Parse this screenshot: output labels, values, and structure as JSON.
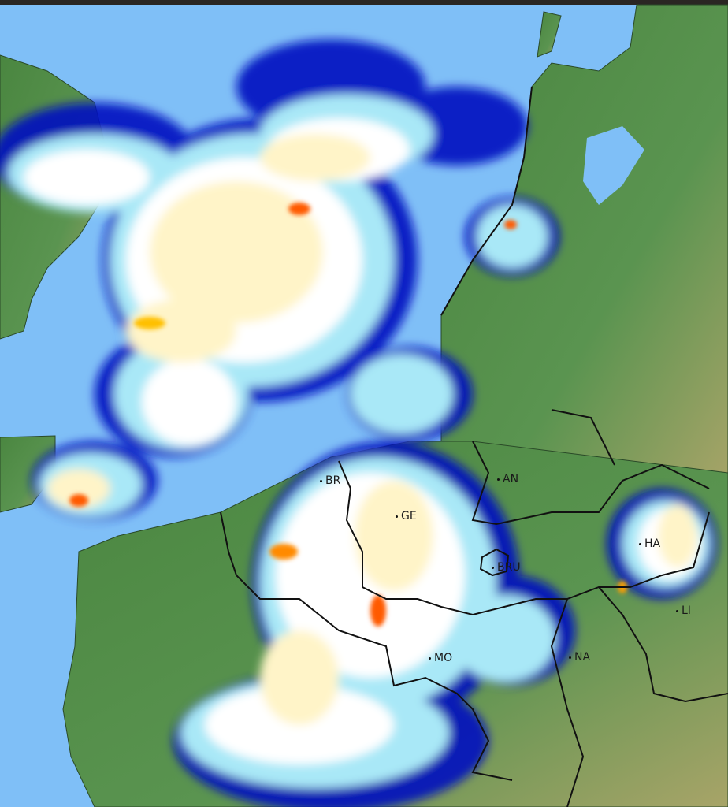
{
  "colors": {
    "sea": "#7fbff7",
    "land_low": "#4f8a45",
    "land_high": "#9fa86a",
    "radar_light": "#a9e8f7",
    "radar_blue": "#1a5de8",
    "radar_dark": "#0010c0",
    "radar_white": "#ffffff",
    "radar_yellow": "#fff4c8",
    "radar_orange": "#ffc000",
    "radar_red": "#ff5a00",
    "border": "#111111"
  },
  "cities": [
    {
      "id": "br",
      "label": "BR"
    },
    {
      "id": "ge",
      "label": "GE"
    },
    {
      "id": "an",
      "label": "AN"
    },
    {
      "id": "bru",
      "label": "BRU"
    },
    {
      "id": "ha",
      "label": "HA"
    },
    {
      "id": "li",
      "label": "LI"
    },
    {
      "id": "na",
      "label": "NA"
    },
    {
      "id": "mo",
      "label": "MO"
    }
  ]
}
